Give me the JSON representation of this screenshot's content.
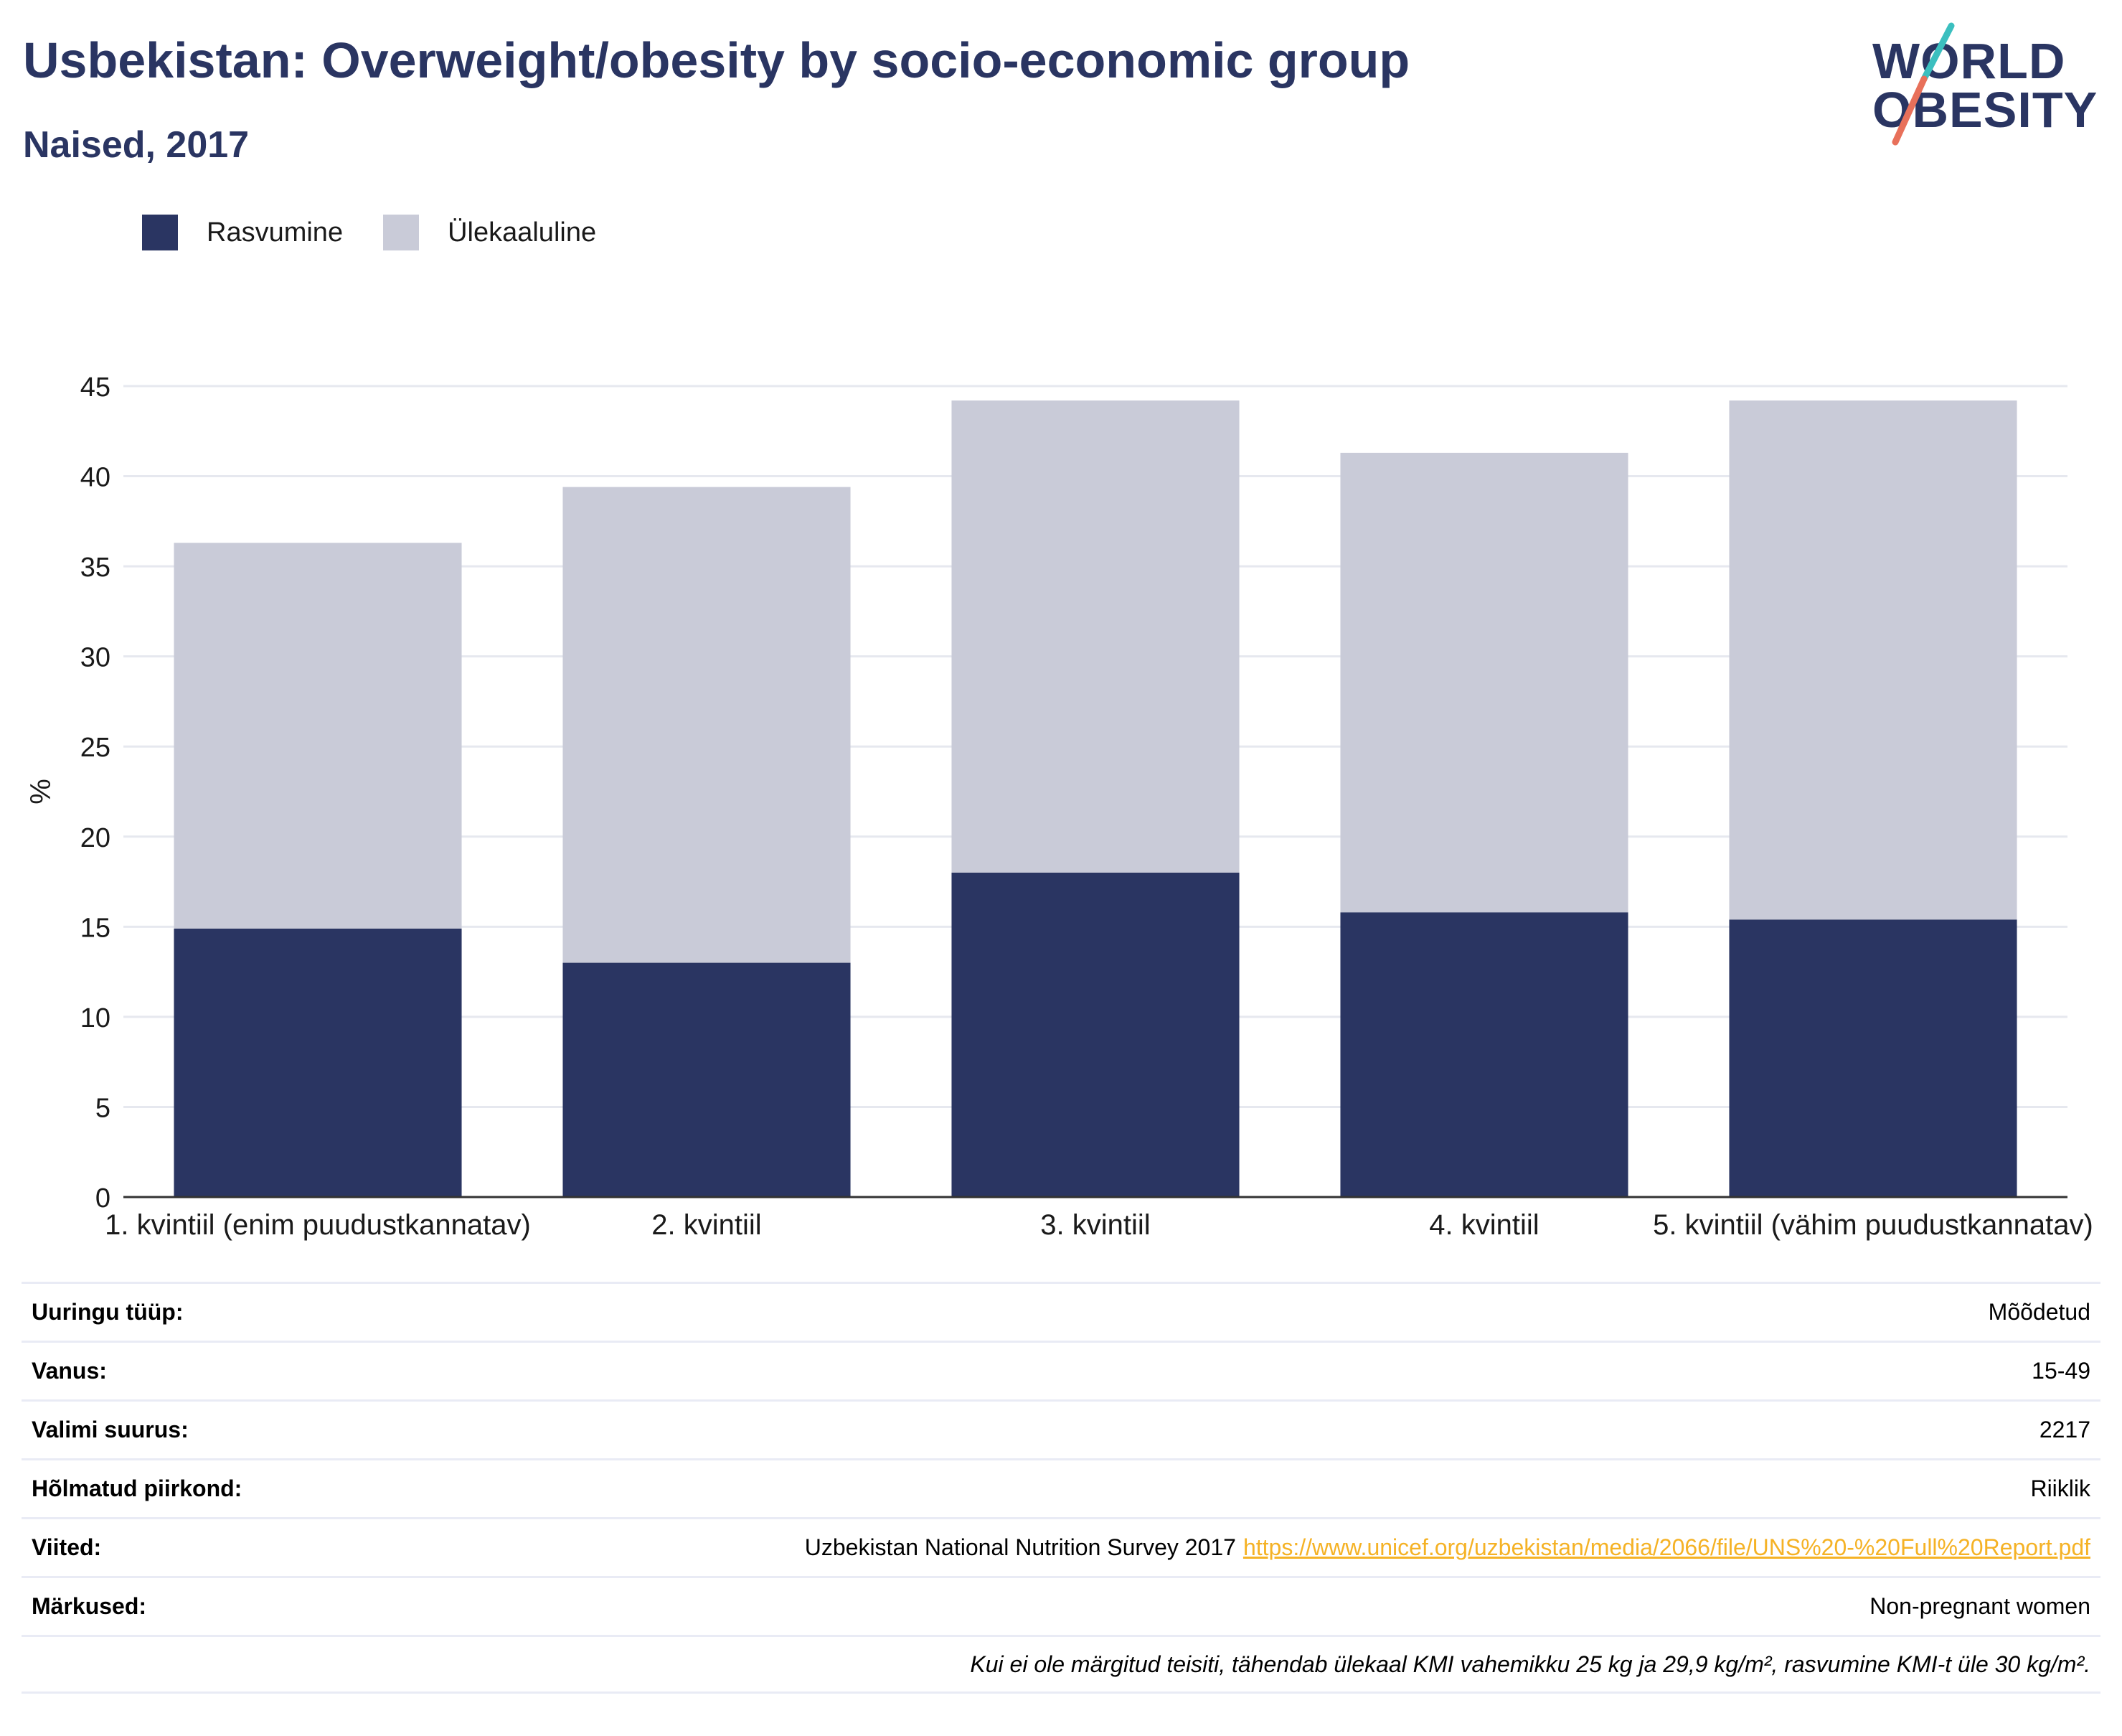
{
  "header": {
    "title": "Usbekistan: Overweight/obesity by socio-economic group",
    "subtitle": "Naised, 2017"
  },
  "logo": {
    "line1": "WORLD",
    "line2": "OBESITY",
    "slash_color_top": "#3bbfbf",
    "slash_color_bottom": "#e8705a"
  },
  "legend": {
    "items": [
      {
        "label": "Rasvumine",
        "color": "#2a3562"
      },
      {
        "label": "Ülekaaluline",
        "color": "#c9cbd8"
      }
    ]
  },
  "chart_data": {
    "type": "bar",
    "stacked": true,
    "categories": [
      "1. kvintiil (enim puudustkannatav)",
      "2. kvintiil",
      "3. kvintiil",
      "4. kvintiil",
      "5. kvintiil (vähim puudustkannatav)"
    ],
    "series": [
      {
        "name": "Rasvumine",
        "color": "#2a3562",
        "values": [
          14.9,
          13.0,
          18.0,
          15.8,
          15.4
        ]
      },
      {
        "name": "Ülekaaluline",
        "color": "#c9cbd8",
        "values": [
          21.4,
          26.4,
          26.2,
          25.5,
          28.8
        ]
      }
    ],
    "ylabel": "%",
    "ylim": [
      0,
      45
    ],
    "yticks": [
      0,
      5,
      10,
      15,
      20,
      25,
      30,
      35,
      40,
      45
    ],
    "grid": true
  },
  "info": {
    "rows": [
      {
        "label": "Uuringu tüüp:",
        "value": "Mõõdetud"
      },
      {
        "label": "Vanus:",
        "value": "15-49"
      },
      {
        "label": "Valimi suurus:",
        "value": "2217"
      },
      {
        "label": "Hõlmatud piirkond:",
        "value": "Riiklik"
      },
      {
        "label": "Viited:",
        "value": "Uzbekistan National Nutrition Survey 2017",
        "link": "https://www.unicef.org/uzbekistan/media/2066/file/UNS%20-%20Full%20Report.pdf"
      },
      {
        "label": "Märkused:",
        "value": "Non-pregnant women"
      }
    ],
    "note": "Kui ei ole märgitud teisiti, tähendab ülekaal KMI vahemikku 25 kg ja 29,9 kg/m², rasvumine KMI-t üle 30 kg/m²."
  }
}
